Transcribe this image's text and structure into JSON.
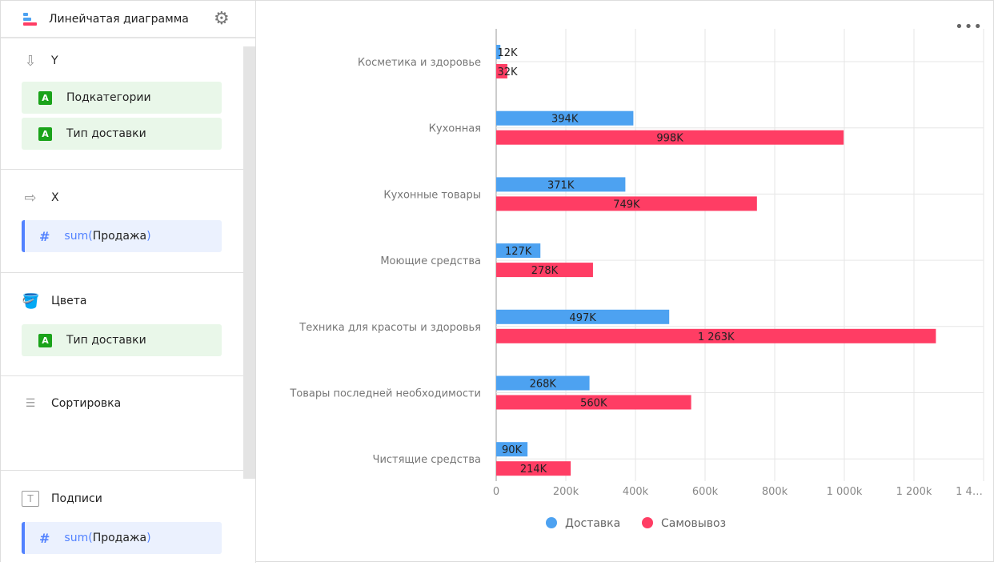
{
  "sidebar": {
    "title": "Линейчатая диаграмма",
    "sections": {
      "y": {
        "title": "Y",
        "items": [
          "Подкатегории",
          "Тип доставки"
        ]
      },
      "x": {
        "title": "X",
        "fn": "sum(",
        "field": "Продажа",
        "close": ")"
      },
      "colors": {
        "title": "Цвета",
        "items": [
          "Тип доставки"
        ]
      },
      "sort": {
        "title": "Сортировка"
      },
      "labels": {
        "title": "Подписи",
        "fn": "sum(",
        "field": "Продажа",
        "close": ")"
      }
    }
  },
  "chart_data": {
    "type": "bar",
    "orientation": "horizontal",
    "categories": [
      "Косметика и здоровье",
      "Кухонная",
      "Кухонные товары",
      "Моющие средства",
      "Техника для красоты и здоровья",
      "Товары последней необходимости",
      "Чистящие средства"
    ],
    "series": [
      {
        "name": "Доставка",
        "color": "#4da2f1",
        "values": [
          12000,
          394000,
          371000,
          127000,
          497000,
          268000,
          90000
        ],
        "labels": [
          "12K",
          "394K",
          "371K",
          "127K",
          "497K",
          "268K",
          "90K"
        ]
      },
      {
        "name": "Самовывоз",
        "color": "#ff3d64",
        "values": [
          32000,
          998000,
          749000,
          278000,
          1263000,
          560000,
          214000
        ],
        "labels": [
          "32K",
          "998K",
          "749K",
          "278K",
          "1 263K",
          "560K",
          "214K"
        ]
      }
    ],
    "xlim": [
      0,
      1400000
    ],
    "xticks": [
      "0",
      "200k",
      "400k",
      "600k",
      "800k",
      "1 000k",
      "1 200k",
      "1 4…"
    ],
    "grid": true,
    "legend": "bottom"
  }
}
